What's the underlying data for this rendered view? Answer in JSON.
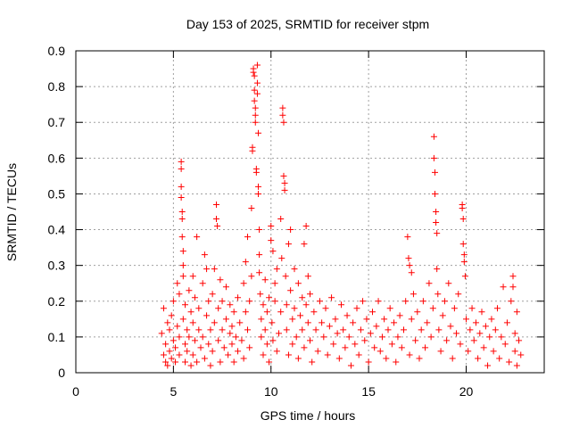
{
  "chart_data": {
    "type": "scatter",
    "title": "Day 153 of 2025, SRMTID for receiver stpm",
    "xlabel": "GPS time / hours",
    "ylabel": "SRMTID / TECUs",
    "xlim": [
      0,
      24
    ],
    "ylim": [
      0,
      0.9
    ],
    "xticks": [
      "0",
      "5",
      "10",
      "15",
      "20"
    ],
    "yticks": [
      "0",
      "0.1",
      "0.2",
      "0.3",
      "0.4",
      "0.5",
      "0.6",
      "0.7",
      "0.8",
      "0.9"
    ],
    "grid": true,
    "marker": "+",
    "color": "#ff0000",
    "series": [
      {
        "points": [
          [
            4.4,
            0.11
          ],
          [
            4.5,
            0.05
          ],
          [
            4.5,
            0.18
          ],
          [
            4.6,
            0.03
          ],
          [
            4.6,
            0.08
          ],
          [
            4.7,
            0.14
          ],
          [
            4.7,
            0.02
          ],
          [
            4.8,
            0.06
          ],
          [
            4.8,
            0.12
          ],
          [
            4.9,
            0.04
          ],
          [
            4.9,
            0.16
          ],
          [
            5.0,
            0.09
          ],
          [
            5.0,
            0.2
          ],
          [
            5.1,
            0.03
          ],
          [
            5.1,
            0.07
          ],
          [
            5.2,
            0.13
          ],
          [
            5.2,
            0.25
          ],
          [
            5.3,
            0.05
          ],
          [
            5.3,
            0.1
          ],
          [
            5.3,
            0.22
          ],
          [
            5.4,
            0.59
          ],
          [
            5.4,
            0.57
          ],
          [
            5.4,
            0.52
          ],
          [
            5.4,
            0.49
          ],
          [
            5.45,
            0.45
          ],
          [
            5.45,
            0.43
          ],
          [
            5.45,
            0.38
          ],
          [
            5.5,
            0.34
          ],
          [
            5.5,
            0.3
          ],
          [
            5.5,
            0.27
          ],
          [
            5.5,
            0.15
          ],
          [
            5.6,
            0.08
          ],
          [
            5.6,
            0.03
          ],
          [
            5.6,
            0.19
          ],
          [
            5.7,
            0.12
          ],
          [
            5.7,
            0.06
          ],
          [
            5.8,
            0.23
          ],
          [
            5.8,
            0.1
          ],
          [
            5.9,
            0.02
          ],
          [
            5.9,
            0.17
          ],
          [
            6.0,
            0.14
          ],
          [
            6.0,
            0.05
          ],
          [
            6.0,
            0.27
          ],
          [
            6.1,
            0.09
          ],
          [
            6.1,
            0.21
          ],
          [
            6.2,
            0.38
          ],
          [
            6.2,
            0.03
          ],
          [
            6.3,
            0.12
          ],
          [
            6.3,
            0.18
          ],
          [
            6.4,
            0.07
          ],
          [
            6.5,
            0.25
          ],
          [
            6.5,
            0.1
          ],
          [
            6.6,
            0.33
          ],
          [
            6.6,
            0.04
          ],
          [
            6.7,
            0.16
          ],
          [
            6.7,
            0.29
          ],
          [
            6.8,
            0.08
          ],
          [
            6.8,
            0.2
          ],
          [
            6.9,
            0.12
          ],
          [
            6.9,
            0.02
          ],
          [
            7.0,
            0.22
          ],
          [
            7.0,
            0.06
          ],
          [
            7.1,
            0.14
          ],
          [
            7.1,
            0.29
          ],
          [
            7.2,
            0.47
          ],
          [
            7.2,
            0.43
          ],
          [
            7.25,
            0.41
          ],
          [
            7.3,
            0.18
          ],
          [
            7.3,
            0.09
          ],
          [
            7.4,
            0.26
          ],
          [
            7.4,
            0.03
          ],
          [
            7.5,
            0.12
          ],
          [
            7.5,
            0.2
          ],
          [
            7.6,
            0.07
          ],
          [
            7.7,
            0.15
          ],
          [
            7.7,
            0.24
          ],
          [
            7.8,
            0.05
          ],
          [
            7.9,
            0.11
          ],
          [
            7.9,
            0.19
          ],
          [
            8.0,
            0.08
          ],
          [
            8.0,
            0.13
          ],
          [
            8.1,
            0.03
          ],
          [
            8.1,
            0.17
          ],
          [
            8.2,
            0.1
          ],
          [
            8.3,
            0.06
          ],
          [
            8.3,
            0.21
          ],
          [
            8.4,
            0.14
          ],
          [
            8.5,
            0.09
          ],
          [
            8.6,
            0.25
          ],
          [
            8.6,
            0.04
          ],
          [
            8.7,
            0.17
          ],
          [
            8.7,
            0.31
          ],
          [
            8.8,
            0.12
          ],
          [
            8.8,
            0.38
          ],
          [
            8.9,
            0.2
          ],
          [
            8.9,
            0.07
          ],
          [
            9.0,
            0.27
          ],
          [
            9.0,
            0.46
          ],
          [
            9.05,
            0.63
          ],
          [
            9.05,
            0.62
          ],
          [
            9.1,
            0.85
          ],
          [
            9.1,
            0.84
          ],
          [
            9.15,
            0.83
          ],
          [
            9.15,
            0.79
          ],
          [
            9.15,
            0.76
          ],
          [
            9.2,
            0.74
          ],
          [
            9.2,
            0.72
          ],
          [
            9.2,
            0.7
          ],
          [
            9.25,
            0.57
          ],
          [
            9.25,
            0.56
          ],
          [
            9.3,
            0.86
          ],
          [
            9.3,
            0.81
          ],
          [
            9.3,
            0.78
          ],
          [
            9.35,
            0.67
          ],
          [
            9.35,
            0.52
          ],
          [
            9.35,
            0.5
          ],
          [
            9.4,
            0.4
          ],
          [
            9.4,
            0.33
          ],
          [
            9.4,
            0.28
          ],
          [
            9.45,
            0.22
          ],
          [
            9.5,
            0.15
          ],
          [
            9.5,
            0.1
          ],
          [
            9.6,
            0.05
          ],
          [
            9.6,
            0.19
          ],
          [
            9.7,
            0.12
          ],
          [
            9.7,
            0.26
          ],
          [
            9.8,
            0.08
          ],
          [
            9.8,
            0.17
          ],
          [
            9.9,
            0.03
          ],
          [
            9.9,
            0.21
          ],
          [
            10.0,
            0.41
          ],
          [
            10.0,
            0.37
          ],
          [
            10.05,
            0.14
          ],
          [
            10.1,
            0.34
          ],
          [
            10.1,
            0.09
          ],
          [
            10.2,
            0.25
          ],
          [
            10.2,
            0.2
          ],
          [
            10.3,
            0.06
          ],
          [
            10.3,
            0.29
          ],
          [
            10.4,
            0.11
          ],
          [
            10.5,
            0.17
          ],
          [
            10.5,
            0.43
          ],
          [
            10.55,
            0.32
          ],
          [
            10.6,
            0.74
          ],
          [
            10.6,
            0.72
          ],
          [
            10.65,
            0.7
          ],
          [
            10.65,
            0.55
          ],
          [
            10.7,
            0.53
          ],
          [
            10.7,
            0.51
          ],
          [
            10.75,
            0.27
          ],
          [
            10.8,
            0.19
          ],
          [
            10.8,
            0.12
          ],
          [
            10.9,
            0.36
          ],
          [
            10.9,
            0.05
          ],
          [
            11.0,
            0.4
          ],
          [
            11.0,
            0.23
          ],
          [
            11.1,
            0.15
          ],
          [
            11.1,
            0.08
          ],
          [
            11.2,
            0.29
          ],
          [
            11.2,
            0.18
          ],
          [
            11.3,
            0.1
          ],
          [
            11.4,
            0.25
          ],
          [
            11.4,
            0.04
          ],
          [
            11.5,
            0.16
          ],
          [
            11.6,
            0.21
          ],
          [
            11.6,
            0.12
          ],
          [
            11.7,
            0.36
          ],
          [
            11.7,
            0.07
          ],
          [
            11.8,
            0.41
          ],
          [
            11.8,
            0.19
          ],
          [
            11.9,
            0.14
          ],
          [
            11.9,
            0.27
          ],
          [
            12.0,
            0.09
          ],
          [
            12.0,
            0.22
          ],
          [
            12.1,
            0.03
          ],
          [
            12.2,
            0.17
          ],
          [
            12.3,
            0.12
          ],
          [
            12.4,
            0.06
          ],
          [
            12.5,
            0.2
          ],
          [
            12.6,
            0.14
          ],
          [
            12.7,
            0.1
          ],
          [
            12.8,
            0.18
          ],
          [
            12.9,
            0.05
          ],
          [
            13.0,
            0.13
          ],
          [
            13.1,
            0.21
          ],
          [
            13.2,
            0.08
          ],
          [
            13.3,
            0.15
          ],
          [
            13.4,
            0.11
          ],
          [
            13.5,
            0.04
          ],
          [
            13.6,
            0.19
          ],
          [
            13.7,
            0.12
          ],
          [
            13.8,
            0.07
          ],
          [
            13.9,
            0.16
          ],
          [
            14.0,
            0.1
          ],
          [
            14.1,
            0.02
          ],
          [
            14.2,
            0.14
          ],
          [
            14.3,
            0.08
          ],
          [
            14.4,
            0.18
          ],
          [
            14.5,
            0.05
          ],
          [
            14.6,
            0.12
          ],
          [
            14.7,
            0.2
          ],
          [
            14.8,
            0.09
          ],
          [
            14.9,
            0.15
          ],
          [
            15.0,
            0.03
          ],
          [
            15.1,
            0.11
          ],
          [
            15.2,
            0.17
          ],
          [
            15.3,
            0.07
          ],
          [
            15.4,
            0.13
          ],
          [
            15.5,
            0.2
          ],
          [
            15.6,
            0.06
          ],
          [
            15.7,
            0.1
          ],
          [
            15.8,
            0.15
          ],
          [
            15.9,
            0.04
          ],
          [
            16.0,
            0.12
          ],
          [
            16.1,
            0.18
          ],
          [
            16.2,
            0.08
          ],
          [
            16.3,
            0.14
          ],
          [
            16.4,
            0.03
          ],
          [
            16.5,
            0.1
          ],
          [
            16.6,
            0.16
          ],
          [
            16.7,
            0.07
          ],
          [
            16.8,
            0.12
          ],
          [
            16.9,
            0.2
          ],
          [
            17.0,
            0.38
          ],
          [
            17.05,
            0.32
          ],
          [
            17.1,
            0.3
          ],
          [
            17.1,
            0.05
          ],
          [
            17.2,
            0.28
          ],
          [
            17.2,
            0.15
          ],
          [
            17.3,
            0.22
          ],
          [
            17.4,
            0.09
          ],
          [
            17.5,
            0.17
          ],
          [
            17.6,
            0.04
          ],
          [
            17.7,
            0.12
          ],
          [
            17.8,
            0.2
          ],
          [
            17.9,
            0.07
          ],
          [
            18.0,
            0.14
          ],
          [
            18.1,
            0.25
          ],
          [
            18.2,
            0.1
          ],
          [
            18.3,
            0.18
          ],
          [
            18.35,
            0.66
          ],
          [
            18.35,
            0.6
          ],
          [
            18.4,
            0.56
          ],
          [
            18.4,
            0.5
          ],
          [
            18.45,
            0.45
          ],
          [
            18.45,
            0.42
          ],
          [
            18.5,
            0.39
          ],
          [
            18.5,
            0.29
          ],
          [
            18.55,
            0.22
          ],
          [
            18.6,
            0.12
          ],
          [
            18.7,
            0.06
          ],
          [
            18.8,
            0.16
          ],
          [
            18.9,
            0.2
          ],
          [
            19.0,
            0.09
          ],
          [
            19.1,
            0.25
          ],
          [
            19.2,
            0.13
          ],
          [
            19.3,
            0.04
          ],
          [
            19.4,
            0.18
          ],
          [
            19.5,
            0.11
          ],
          [
            19.6,
            0.22
          ],
          [
            19.7,
            0.08
          ],
          [
            19.8,
            0.47
          ],
          [
            19.8,
            0.46
          ],
          [
            19.85,
            0.43
          ],
          [
            19.85,
            0.36
          ],
          [
            19.9,
            0.33
          ],
          [
            19.9,
            0.31
          ],
          [
            19.95,
            0.27
          ],
          [
            20.0,
            0.15
          ],
          [
            20.1,
            0.06
          ],
          [
            20.2,
            0.12
          ],
          [
            20.3,
            0.18
          ],
          [
            20.4,
            0.09
          ],
          [
            20.5,
            0.14
          ],
          [
            20.6,
            0.04
          ],
          [
            20.7,
            0.11
          ],
          [
            20.8,
            0.17
          ],
          [
            20.9,
            0.07
          ],
          [
            21.0,
            0.13
          ],
          [
            21.1,
            0.02
          ],
          [
            21.2,
            0.1
          ],
          [
            21.3,
            0.15
          ],
          [
            21.4,
            0.06
          ],
          [
            21.5,
            0.12
          ],
          [
            21.6,
            0.18
          ],
          [
            21.7,
            0.04
          ],
          [
            21.8,
            0.1
          ],
          [
            21.9,
            0.24
          ],
          [
            22.0,
            0.08
          ],
          [
            22.1,
            0.14
          ],
          [
            22.2,
            0.03
          ],
          [
            22.3,
            0.2
          ],
          [
            22.4,
            0.27
          ],
          [
            22.4,
            0.24
          ],
          [
            22.5,
            0.11
          ],
          [
            22.5,
            0.06
          ],
          [
            22.6,
            0.17
          ],
          [
            22.6,
            0.02
          ],
          [
            22.7,
            0.09
          ],
          [
            22.8,
            0.05
          ]
        ]
      }
    ]
  }
}
